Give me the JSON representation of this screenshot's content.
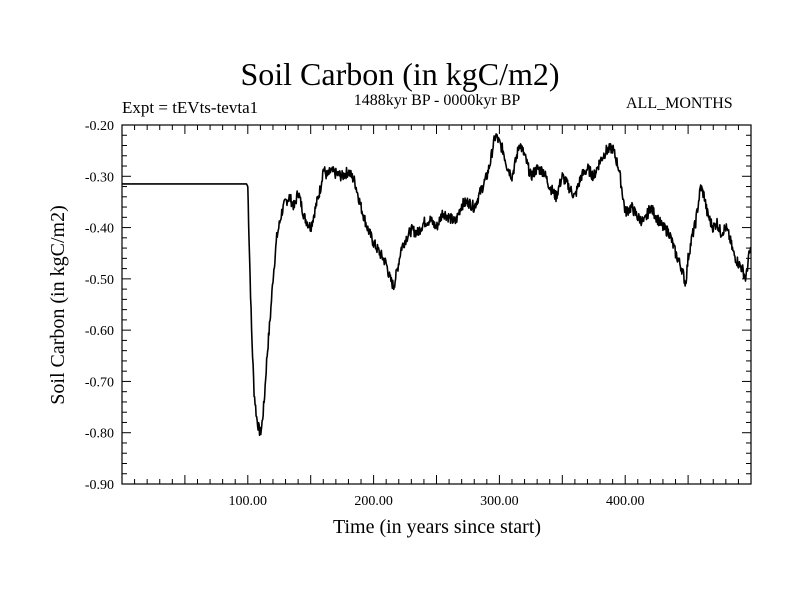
{
  "header": {
    "title": "Soil Carbon (in kgC/m2)",
    "expt": "Expt = tEVts-tevta1",
    "period": "1488kyr BP - 0000kyr BP",
    "months": "ALL_MONTHS"
  },
  "chart_data": {
    "type": "line",
    "title": "Soil Carbon (in kgC/m2)",
    "xlabel": "Time (in years since start)",
    "ylabel": "Soil Carbon (in kgC/m2)",
    "xlim": [
      0,
      500
    ],
    "ylim": [
      -0.9,
      -0.2
    ],
    "x_ticks": [
      100,
      200,
      300,
      400
    ],
    "x_tick_labels": [
      "100.00",
      "200.00",
      "300.00",
      "400.00"
    ],
    "y_ticks": [
      -0.2,
      -0.3,
      -0.4,
      -0.5,
      -0.6,
      -0.7,
      -0.8,
      -0.9
    ],
    "y_tick_labels": [
      "-0.20",
      "-0.30",
      "-0.40",
      "-0.50",
      "-0.60",
      "-0.70",
      "-0.80",
      "-0.90"
    ],
    "line_color": "#000000",
    "series": [
      {
        "name": "Soil Carbon",
        "x": [
          0,
          20,
          40,
          60,
          80,
          99,
          100,
          101,
          103,
          105,
          107,
          109,
          110,
          111,
          113,
          115,
          118,
          120,
          123,
          127,
          130,
          133,
          137,
          140,
          145,
          150,
          155,
          158,
          160,
          163,
          166,
          170,
          175,
          180,
          185,
          190,
          195,
          200,
          205,
          210,
          213,
          216,
          219,
          222,
          226,
          230,
          235,
          240,
          245,
          250,
          255,
          260,
          265,
          270,
          275,
          280,
          285,
          290,
          293,
          295,
          297,
          300,
          303,
          306,
          310,
          313,
          316,
          320,
          325,
          330,
          335,
          340,
          345,
          350,
          355,
          360,
          365,
          370,
          375,
          380,
          385,
          390,
          395,
          400,
          405,
          410,
          415,
          420,
          425,
          430,
          435,
          440,
          445,
          448,
          450,
          453,
          456,
          460,
          463,
          465,
          468,
          470,
          473,
          476,
          480,
          483,
          486,
          490,
          493,
          496,
          498,
          500
        ],
        "y": [
          -0.315,
          -0.315,
          -0.315,
          -0.315,
          -0.315,
          -0.315,
          -0.32,
          -0.42,
          -0.6,
          -0.72,
          -0.77,
          -0.795,
          -0.8,
          -0.79,
          -0.74,
          -0.66,
          -0.57,
          -0.5,
          -0.42,
          -0.37,
          -0.35,
          -0.34,
          -0.36,
          -0.33,
          -0.38,
          -0.4,
          -0.35,
          -0.32,
          -0.285,
          -0.3,
          -0.29,
          -0.295,
          -0.3,
          -0.29,
          -0.31,
          -0.36,
          -0.4,
          -0.43,
          -0.45,
          -0.47,
          -0.5,
          -0.515,
          -0.48,
          -0.44,
          -0.42,
          -0.405,
          -0.41,
          -0.39,
          -0.385,
          -0.4,
          -0.37,
          -0.38,
          -0.39,
          -0.355,
          -0.35,
          -0.36,
          -0.33,
          -0.3,
          -0.27,
          -0.24,
          -0.22,
          -0.235,
          -0.25,
          -0.28,
          -0.3,
          -0.27,
          -0.235,
          -0.26,
          -0.3,
          -0.285,
          -0.29,
          -0.32,
          -0.34,
          -0.3,
          -0.32,
          -0.34,
          -0.3,
          -0.285,
          -0.3,
          -0.27,
          -0.25,
          -0.245,
          -0.285,
          -0.37,
          -0.36,
          -0.38,
          -0.39,
          -0.36,
          -0.38,
          -0.4,
          -0.41,
          -0.45,
          -0.48,
          -0.51,
          -0.46,
          -0.42,
          -0.39,
          -0.32,
          -0.34,
          -0.37,
          -0.39,
          -0.4,
          -0.39,
          -0.41,
          -0.4,
          -0.42,
          -0.45,
          -0.47,
          -0.48,
          -0.5,
          -0.46,
          -0.44
        ]
      }
    ]
  }
}
